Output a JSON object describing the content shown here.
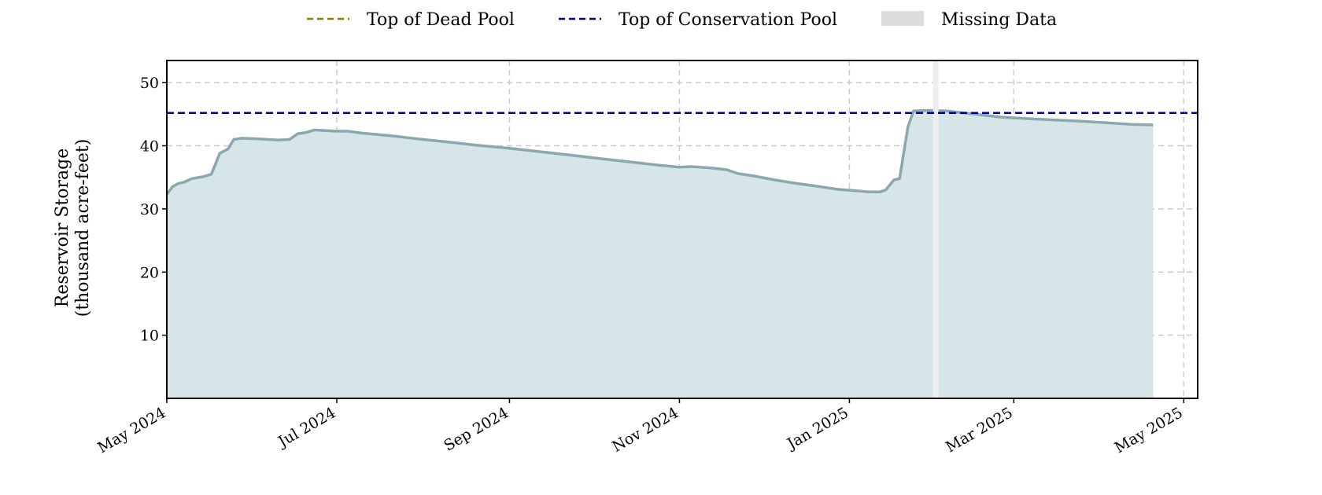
{
  "chart_data": {
    "type": "area",
    "title": "",
    "ylabel": [
      "Reservoir Storage",
      "(thousand acre-feet)"
    ],
    "xlabel": "",
    "x_axis": {
      "type": "date",
      "range": [
        "2024-05-01",
        "2025-05-06"
      ],
      "ticks": [
        {
          "date": "2024-05-01",
          "label": "May 2024"
        },
        {
          "date": "2024-07-01",
          "label": "Jul 2024"
        },
        {
          "date": "2024-09-01",
          "label": "Sep 2024"
        },
        {
          "date": "2024-11-01",
          "label": "Nov 2024"
        },
        {
          "date": "2025-01-01",
          "label": "Jan 2025"
        },
        {
          "date": "2025-03-01",
          "label": "Mar 2025"
        },
        {
          "date": "2025-05-01",
          "label": "May 2025"
        }
      ]
    },
    "y_axis": {
      "range": [
        0,
        53.5
      ],
      "ticks": [
        10,
        20,
        30,
        40,
        50
      ]
    },
    "grid": true,
    "legend": {
      "placement": "top-center",
      "entries": [
        {
          "label": "Top of Dead Pool",
          "style": "dashed",
          "color": "#8b8000"
        },
        {
          "label": "Top of Conservation Pool",
          "style": "dashed",
          "color": "#00008b"
        },
        {
          "label": "Missing Data",
          "style": "patch",
          "color": "#dddddd"
        }
      ]
    },
    "reference_lines": [
      {
        "name": "Top of Conservation Pool",
        "value": 45.2,
        "color": "#00008b"
      }
    ],
    "missing_data": [
      {
        "start": "2025-01-31",
        "end": "2025-02-02"
      }
    ],
    "series": [
      {
        "color": "#8aa8ad",
        "fill": "#d6e5e7",
        "points": [
          [
            "2024-05-01",
            32.3
          ],
          [
            "2024-05-03",
            33.5
          ],
          [
            "2024-05-05",
            34.0
          ],
          [
            "2024-05-07",
            34.2
          ],
          [
            "2024-05-10",
            34.8
          ],
          [
            "2024-05-14",
            35.1
          ],
          [
            "2024-05-17",
            35.5
          ],
          [
            "2024-05-20",
            38.8
          ],
          [
            "2024-05-23",
            39.5
          ],
          [
            "2024-05-25",
            41.0
          ],
          [
            "2024-05-28",
            41.2
          ],
          [
            "2024-06-03",
            41.1
          ],
          [
            "2024-06-10",
            40.9
          ],
          [
            "2024-06-14",
            41.0
          ],
          [
            "2024-06-17",
            41.9
          ],
          [
            "2024-06-20",
            42.1
          ],
          [
            "2024-06-23",
            42.5
          ],
          [
            "2024-06-27",
            42.4
          ],
          [
            "2024-07-01",
            42.3
          ],
          [
            "2024-07-05",
            42.3
          ],
          [
            "2024-07-10",
            42.0
          ],
          [
            "2024-07-20",
            41.6
          ],
          [
            "2024-08-01",
            41.0
          ],
          [
            "2024-08-10",
            40.6
          ],
          [
            "2024-08-20",
            40.1
          ],
          [
            "2024-09-01",
            39.6
          ],
          [
            "2024-09-15",
            38.9
          ],
          [
            "2024-10-01",
            38.1
          ],
          [
            "2024-10-15",
            37.4
          ],
          [
            "2024-10-25",
            36.9
          ],
          [
            "2024-11-01",
            36.6
          ],
          [
            "2024-11-05",
            36.7
          ],
          [
            "2024-11-12",
            36.5
          ],
          [
            "2024-11-18",
            36.2
          ],
          [
            "2024-11-22",
            35.6
          ],
          [
            "2024-11-28",
            35.2
          ],
          [
            "2024-12-05",
            34.6
          ],
          [
            "2024-12-12",
            34.1
          ],
          [
            "2024-12-20",
            33.6
          ],
          [
            "2024-12-28",
            33.1
          ],
          [
            "2025-01-03",
            32.9
          ],
          [
            "2025-01-08",
            32.7
          ],
          [
            "2025-01-12",
            32.7
          ],
          [
            "2025-01-14",
            33.0
          ],
          [
            "2025-01-17",
            34.6
          ],
          [
            "2025-01-19",
            34.8
          ],
          [
            "2025-01-20",
            37.5
          ],
          [
            "2025-01-22",
            43.0
          ],
          [
            "2025-01-24",
            45.5
          ],
          [
            "2025-01-30",
            45.6
          ],
          [
            "2025-02-05",
            45.5
          ],
          [
            "2025-02-15",
            45.0
          ],
          [
            "2025-02-25",
            44.5
          ],
          [
            "2025-03-10",
            44.2
          ],
          [
            "2025-03-25",
            43.9
          ],
          [
            "2025-04-05",
            43.6
          ],
          [
            "2025-04-12",
            43.4
          ],
          [
            "2025-04-20",
            43.3
          ]
        ]
      }
    ]
  }
}
